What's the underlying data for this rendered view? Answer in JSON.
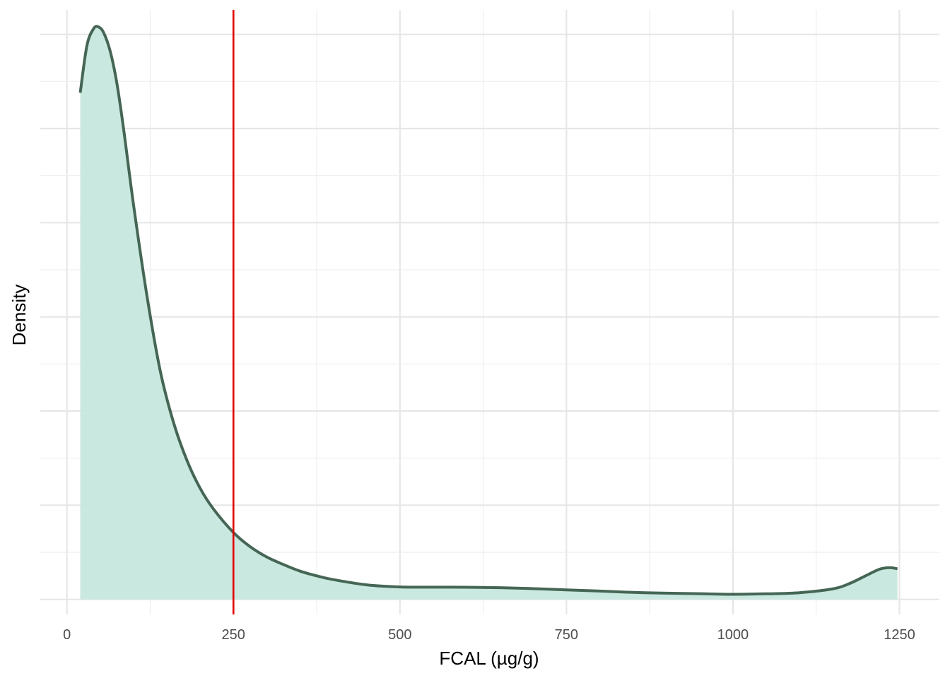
{
  "chart_data": {
    "type": "area",
    "xlabel": "FCAL (µg/g)",
    "ylabel": "Density",
    "xlim": [
      -40,
      1310
    ],
    "ylim": [
      -0.00016,
      0.00626
    ],
    "x_ticks": [
      0,
      250,
      500,
      750,
      1000,
      1250
    ],
    "x_tick_labels": [
      "0",
      "250",
      "500",
      "750",
      "1000",
      "1250"
    ],
    "y_tick_labels_shown": false,
    "y_gridlines": [
      0,
      0.001,
      0.002,
      0.003,
      0.004,
      0.005,
      0.006
    ],
    "grid": true,
    "series": [
      {
        "x": [
          20,
          30,
          40,
          47,
          55,
          65,
          75,
          85,
          100,
          120,
          140,
          160,
          180,
          200,
          220,
          250,
          275,
          300,
          325,
          350,
          375,
          400,
          450,
          500,
          550,
          600,
          650,
          700,
          750,
          800,
          850,
          900,
          950,
          1000,
          1050,
          1100,
          1150,
          1175,
          1200,
          1220,
          1235,
          1247
        ],
        "y": [
          0.00538,
          0.00588,
          0.00606,
          0.00608,
          0.00602,
          0.00582,
          0.00548,
          0.005,
          0.00419,
          0.00323,
          0.00243,
          0.00188,
          0.00148,
          0.00118,
          0.00096,
          0.00071,
          0.00056,
          0.00045,
          0.00037,
          0.0003,
          0.00025,
          0.00021,
          0.000154,
          0.000132,
          0.00013,
          0.000129,
          0.000124,
          0.000114,
          0.000101,
          8.8e-05,
          7.4e-05,
          6.6e-05,
          6e-05,
          5.4e-05,
          5.9e-05,
          7.1e-05,
          0.000112,
          0.000168,
          0.000253,
          0.00032,
          0.000337,
          0.000325
        ]
      }
    ],
    "reference_lines": [
      {
        "x": 250,
        "color": "#e00000"
      }
    ],
    "colors": {
      "fill": "#c6e7de",
      "line": "#456655",
      "reference": "#e00000",
      "grid": "#e6e6e6"
    }
  }
}
